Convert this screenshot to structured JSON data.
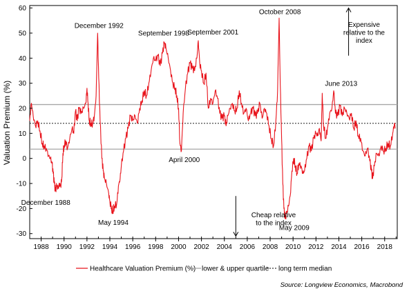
{
  "chart_data": {
    "type": "line",
    "ylabel": "Valuation Premium (%)",
    "ylim": [
      -32,
      61
    ],
    "xlim": [
      1987.0,
      2019.1
    ],
    "y_ticks": [
      60,
      50,
      40,
      30,
      20,
      10,
      0,
      -10,
      -20,
      -30
    ],
    "x_ticks": [
      1988,
      1990,
      1992,
      1994,
      1996,
      1998,
      2000,
      2002,
      2004,
      2006,
      2008,
      2010,
      2012,
      2014,
      2016,
      2018
    ],
    "grid": false,
    "legend_position": "bottom",
    "series": [
      {
        "name": "Healthcare Valuation Premium (%)",
        "color": "#e8131b",
        "style": "solid",
        "points": [
          [
            1987.0,
            15
          ],
          [
            1987.15,
            22
          ],
          [
            1987.3,
            17
          ],
          [
            1987.5,
            13
          ],
          [
            1987.7,
            15
          ],
          [
            1987.9,
            11
          ],
          [
            1988.1,
            6
          ],
          [
            1988.25,
            5
          ],
          [
            1988.45,
            4
          ],
          [
            1988.65,
            1
          ],
          [
            1988.8,
            0
          ],
          [
            1988.95,
            -2
          ],
          [
            1989.05,
            -6
          ],
          [
            1989.15,
            -10
          ],
          [
            1989.25,
            -13
          ],
          [
            1989.35,
            -11
          ],
          [
            1989.5,
            -12
          ],
          [
            1989.6,
            -10
          ],
          [
            1989.7,
            -11
          ],
          [
            1989.8,
            -8
          ],
          [
            1989.9,
            2
          ],
          [
            1990.0,
            5
          ],
          [
            1990.15,
            7
          ],
          [
            1990.3,
            4
          ],
          [
            1990.5,
            8
          ],
          [
            1990.7,
            12
          ],
          [
            1990.85,
            10
          ],
          [
            1991.0,
            19
          ],
          [
            1991.15,
            15
          ],
          [
            1991.3,
            20
          ],
          [
            1991.5,
            18
          ],
          [
            1991.7,
            20
          ],
          [
            1991.9,
            22
          ],
          [
            1992.0,
            28
          ],
          [
            1992.1,
            22
          ],
          [
            1992.2,
            15
          ],
          [
            1992.35,
            14
          ],
          [
            1992.5,
            14
          ],
          [
            1992.65,
            17
          ],
          [
            1992.8,
            25
          ],
          [
            1992.93,
            50
          ],
          [
            1993.03,
            32
          ],
          [
            1993.15,
            15
          ],
          [
            1993.3,
            0
          ],
          [
            1993.42,
            -5
          ],
          [
            1993.52,
            -8
          ],
          [
            1993.7,
            -10
          ],
          [
            1993.9,
            -14
          ],
          [
            1994.0,
            -17
          ],
          [
            1994.15,
            -20
          ],
          [
            1994.25,
            -21
          ],
          [
            1994.4,
            -19
          ],
          [
            1994.6,
            -18
          ],
          [
            1994.75,
            -11
          ],
          [
            1994.9,
            -8
          ],
          [
            1995.0,
            -3
          ],
          [
            1995.2,
            3
          ],
          [
            1995.4,
            8
          ],
          [
            1995.6,
            12
          ],
          [
            1995.8,
            17
          ],
          [
            1996.0,
            15
          ],
          [
            1996.2,
            17
          ],
          [
            1996.4,
            14
          ],
          [
            1996.6,
            20
          ],
          [
            1996.8,
            23
          ],
          [
            1997.0,
            27
          ],
          [
            1997.2,
            25
          ],
          [
            1997.4,
            30
          ],
          [
            1997.6,
            35
          ],
          [
            1997.8,
            40
          ],
          [
            1998.0,
            39
          ],
          [
            1998.2,
            41
          ],
          [
            1998.4,
            37
          ],
          [
            1998.6,
            42
          ],
          [
            1998.75,
            46
          ],
          [
            1998.9,
            44
          ],
          [
            1999.1,
            40
          ],
          [
            1999.3,
            35
          ],
          [
            1999.5,
            30
          ],
          [
            1999.7,
            28
          ],
          [
            1999.85,
            25
          ],
          [
            2000.0,
            20
          ],
          [
            2000.12,
            6
          ],
          [
            2000.25,
            3
          ],
          [
            2000.4,
            18
          ],
          [
            2000.6,
            28
          ],
          [
            2000.8,
            34
          ],
          [
            2001.0,
            38
          ],
          [
            2001.2,
            36
          ],
          [
            2001.4,
            35
          ],
          [
            2001.6,
            40
          ],
          [
            2001.72,
            47
          ],
          [
            2001.85,
            38
          ],
          [
            2002.0,
            35
          ],
          [
            2002.2,
            30
          ],
          [
            2002.4,
            34
          ],
          [
            2002.6,
            20
          ],
          [
            2002.8,
            24
          ],
          [
            2003.0,
            22
          ],
          [
            2003.2,
            27
          ],
          [
            2003.4,
            24
          ],
          [
            2003.6,
            18
          ],
          [
            2003.8,
            16
          ],
          [
            2004.0,
            17
          ],
          [
            2004.15,
            13
          ],
          [
            2004.3,
            17
          ],
          [
            2004.5,
            20
          ],
          [
            2004.7,
            22
          ],
          [
            2004.9,
            19
          ],
          [
            2005.1,
            20
          ],
          [
            2005.3,
            27
          ],
          [
            2005.5,
            22
          ],
          [
            2005.7,
            18
          ],
          [
            2005.9,
            20
          ],
          [
            2006.1,
            15
          ],
          [
            2006.3,
            18
          ],
          [
            2006.5,
            20
          ],
          [
            2006.7,
            17
          ],
          [
            2006.9,
            18
          ],
          [
            2007.1,
            22
          ],
          [
            2007.3,
            16
          ],
          [
            2007.5,
            20
          ],
          [
            2007.7,
            18
          ],
          [
            2007.9,
            13
          ],
          [
            2008.1,
            8
          ],
          [
            2008.3,
            5
          ],
          [
            2008.5,
            15
          ],
          [
            2008.65,
            27
          ],
          [
            2008.78,
            56
          ],
          [
            2008.88,
            30
          ],
          [
            2009.0,
            8
          ],
          [
            2009.1,
            -10
          ],
          [
            2009.2,
            -20
          ],
          [
            2009.3,
            -24
          ],
          [
            2009.45,
            -22
          ],
          [
            2009.6,
            -19
          ],
          [
            2009.75,
            -15
          ],
          [
            2009.9,
            -5
          ],
          [
            2010.05,
            0
          ],
          [
            2010.2,
            -3
          ],
          [
            2010.35,
            -6
          ],
          [
            2010.5,
            -2
          ],
          [
            2010.7,
            -3
          ],
          [
            2010.85,
            -6
          ],
          [
            2011.0,
            -5
          ],
          [
            2011.2,
            0
          ],
          [
            2011.4,
            5
          ],
          [
            2011.6,
            3
          ],
          [
            2011.8,
            8
          ],
          [
            2012.0,
            10
          ],
          [
            2012.15,
            9
          ],
          [
            2012.3,
            12
          ],
          [
            2012.45,
            7
          ],
          [
            2012.55,
            26
          ],
          [
            2012.65,
            14
          ],
          [
            2012.85,
            8
          ],
          [
            2013.0,
            12
          ],
          [
            2013.2,
            18
          ],
          [
            2013.4,
            20
          ],
          [
            2013.55,
            27
          ],
          [
            2013.7,
            18
          ],
          [
            2013.9,
            17
          ],
          [
            2014.1,
            21
          ],
          [
            2014.3,
            17
          ],
          [
            2014.5,
            20
          ],
          [
            2014.7,
            18
          ],
          [
            2014.9,
            16
          ],
          [
            2015.1,
            18
          ],
          [
            2015.3,
            12
          ],
          [
            2015.5,
            15
          ],
          [
            2015.7,
            9
          ],
          [
            2015.9,
            8
          ],
          [
            2016.1,
            3
          ],
          [
            2016.3,
            1
          ],
          [
            2016.5,
            4
          ],
          [
            2016.7,
            -1
          ],
          [
            2016.85,
            -5
          ],
          [
            2016.95,
            -8
          ],
          [
            2017.1,
            -3
          ],
          [
            2017.3,
            2
          ],
          [
            2017.5,
            1
          ],
          [
            2017.7,
            5
          ],
          [
            2017.9,
            3
          ],
          [
            2018.1,
            4
          ],
          [
            2018.3,
            6
          ],
          [
            2018.5,
            5
          ],
          [
            2018.7,
            10
          ],
          [
            2018.85,
            14
          ],
          [
            2018.95,
            12
          ]
        ]
      },
      {
        "name": "lower & upper quartile",
        "color": "#a6a6a6",
        "style": "solid",
        "values": [
          3.7,
          21.5
        ]
      },
      {
        "name": "long term median",
        "color": "#333333",
        "style": "dotted",
        "values": [
          14.0
        ]
      }
    ],
    "annotations": [
      {
        "text": "December 1992",
        "x": 1993.05,
        "y": 52,
        "anchor": "middle"
      },
      {
        "text": "September 1998",
        "x": 1998.7,
        "y": 49,
        "anchor": "middle"
      },
      {
        "text": "September 2001",
        "x": 2003.0,
        "y": 49.5,
        "anchor": "middle"
      },
      {
        "text": "October 2008",
        "x": 2008.85,
        "y": 57.5,
        "anchor": "middle"
      },
      {
        "text": "June 2013",
        "x": 2014.2,
        "y": 29,
        "anchor": "middle"
      },
      {
        "text": "April 2000",
        "x": 2000.5,
        "y": -1.5,
        "anchor": "middle"
      },
      {
        "text": "December 1988",
        "x": 1988.4,
        "y": -18.5,
        "anchor": "middle"
      },
      {
        "text": "May 1994",
        "x": 1994.3,
        "y": -26.5,
        "anchor": "middle"
      },
      {
        "text": "May 2009",
        "x": 2010.1,
        "y": -28.5,
        "anchor": "middle"
      },
      {
        "text": "Expensive",
        "x": 2016.2,
        "y": 52.5,
        "anchor": "middle"
      },
      {
        "text": "relative to the",
        "x": 2016.2,
        "y": 49.3,
        "anchor": "middle"
      },
      {
        "text": "index",
        "x": 2016.2,
        "y": 46.1,
        "anchor": "middle"
      },
      {
        "text": "Cheap relative",
        "x": 2008.3,
        "y": -23.5,
        "anchor": "middle"
      },
      {
        "text": "to the index",
        "x": 2008.3,
        "y": -26.7,
        "anchor": "middle"
      }
    ],
    "arrows": [
      {
        "x": 2014.85,
        "y_from": 41,
        "y_to": 60
      },
      {
        "x": 2005.0,
        "y_from": -15,
        "y_to": -31
      }
    ],
    "source": "Source: Longview Economics, Macrobond"
  }
}
